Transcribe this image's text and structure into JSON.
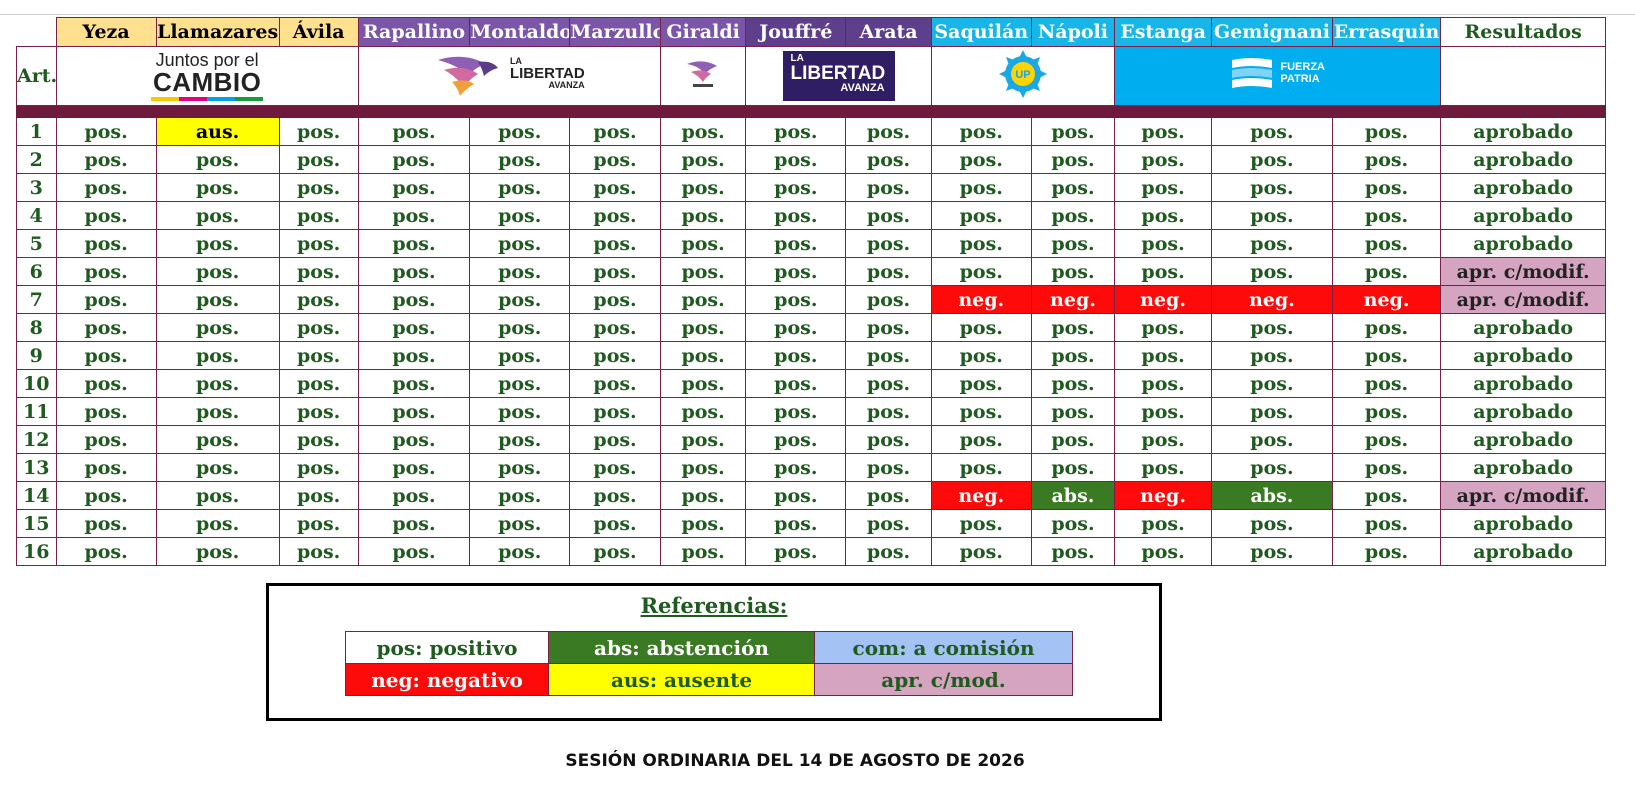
{
  "table": {
    "art_label": "Art.",
    "columns": [
      {
        "name": "Yeza",
        "group": "jxc"
      },
      {
        "name": "Llamazares",
        "group": "jxc"
      },
      {
        "name": "Ávila",
        "group": "jxc"
      },
      {
        "name": "Rapallino",
        "group": "lla"
      },
      {
        "name": "Montaldo",
        "group": "lla"
      },
      {
        "name": "Marzullo",
        "group": "lla"
      },
      {
        "name": "Giraldi",
        "group": "lla"
      },
      {
        "name": "Jouffré",
        "group": "lla2"
      },
      {
        "name": "Arata",
        "group": "lla2"
      },
      {
        "name": "Saquilán",
        "group": "up"
      },
      {
        "name": "Nápoli",
        "group": "up"
      },
      {
        "name": "Estanga",
        "group": "up"
      },
      {
        "name": "Gemignani",
        "group": "up"
      },
      {
        "name": "Errasquin",
        "group": "up"
      }
    ],
    "results_label": "Resultados",
    "rows": [
      {
        "art": "1",
        "votes": [
          "pos.",
          "aus.",
          "pos.",
          "pos.",
          "pos.",
          "pos.",
          "pos.",
          "pos.",
          "pos.",
          "pos.",
          "pos.",
          "pos.",
          "pos.",
          "pos."
        ],
        "result": "aprobado"
      },
      {
        "art": "2",
        "votes": [
          "pos.",
          "pos.",
          "pos.",
          "pos.",
          "pos.",
          "pos.",
          "pos.",
          "pos.",
          "pos.",
          "pos.",
          "pos.",
          "pos.",
          "pos.",
          "pos."
        ],
        "result": "aprobado"
      },
      {
        "art": "3",
        "votes": [
          "pos.",
          "pos.",
          "pos.",
          "pos.",
          "pos.",
          "pos.",
          "pos.",
          "pos.",
          "pos.",
          "pos.",
          "pos.",
          "pos.",
          "pos.",
          "pos."
        ],
        "result": "aprobado"
      },
      {
        "art": "4",
        "votes": [
          "pos.",
          "pos.",
          "pos.",
          "pos.",
          "pos.",
          "pos.",
          "pos.",
          "pos.",
          "pos.",
          "pos.",
          "pos.",
          "pos.",
          "pos.",
          "pos."
        ],
        "result": "aprobado"
      },
      {
        "art": "5",
        "votes": [
          "pos.",
          "pos.",
          "pos.",
          "pos.",
          "pos.",
          "pos.",
          "pos.",
          "pos.",
          "pos.",
          "pos.",
          "pos.",
          "pos.",
          "pos.",
          "pos."
        ],
        "result": "aprobado"
      },
      {
        "art": "6",
        "votes": [
          "pos.",
          "pos.",
          "pos.",
          "pos.",
          "pos.",
          "pos.",
          "pos.",
          "pos.",
          "pos.",
          "pos.",
          "pos.",
          "pos.",
          "pos.",
          "pos."
        ],
        "result": "apr. c/modif."
      },
      {
        "art": "7",
        "votes": [
          "pos.",
          "pos.",
          "pos.",
          "pos.",
          "pos.",
          "pos.",
          "pos.",
          "pos.",
          "pos.",
          "neg.",
          "neg.",
          "neg.",
          "neg.",
          "neg."
        ],
        "result": "apr. c/modif."
      },
      {
        "art": "8",
        "votes": [
          "pos.",
          "pos.",
          "pos.",
          "pos.",
          "pos.",
          "pos.",
          "pos.",
          "pos.",
          "pos.",
          "pos.",
          "pos.",
          "pos.",
          "pos.",
          "pos."
        ],
        "result": "aprobado"
      },
      {
        "art": "9",
        "votes": [
          "pos.",
          "pos.",
          "pos.",
          "pos.",
          "pos.",
          "pos.",
          "pos.",
          "pos.",
          "pos.",
          "pos.",
          "pos.",
          "pos.",
          "pos.",
          "pos."
        ],
        "result": "aprobado"
      },
      {
        "art": "10",
        "votes": [
          "pos.",
          "pos.",
          "pos.",
          "pos.",
          "pos.",
          "pos.",
          "pos.",
          "pos.",
          "pos.",
          "pos.",
          "pos.",
          "pos.",
          "pos.",
          "pos."
        ],
        "result": "aprobado"
      },
      {
        "art": "11",
        "votes": [
          "pos.",
          "pos.",
          "pos.",
          "pos.",
          "pos.",
          "pos.",
          "pos.",
          "pos.",
          "pos.",
          "pos.",
          "pos.",
          "pos.",
          "pos.",
          "pos."
        ],
        "result": "aprobado"
      },
      {
        "art": "12",
        "votes": [
          "pos.",
          "pos.",
          "pos.",
          "pos.",
          "pos.",
          "pos.",
          "pos.",
          "pos.",
          "pos.",
          "pos.",
          "pos.",
          "pos.",
          "pos.",
          "pos."
        ],
        "result": "aprobado"
      },
      {
        "art": "13",
        "votes": [
          "pos.",
          "pos.",
          "pos.",
          "pos.",
          "pos.",
          "pos.",
          "pos.",
          "pos.",
          "pos.",
          "pos.",
          "pos.",
          "pos.",
          "pos.",
          "pos."
        ],
        "result": "aprobado"
      },
      {
        "art": "14",
        "votes": [
          "pos.",
          "pos.",
          "pos.",
          "pos.",
          "pos.",
          "pos.",
          "pos.",
          "pos.",
          "pos.",
          "neg.",
          "abs.",
          "neg.",
          "abs.",
          "pos."
        ],
        "result": "apr. c/modif."
      },
      {
        "art": "15",
        "votes": [
          "pos.",
          "pos.",
          "pos.",
          "pos.",
          "pos.",
          "pos.",
          "pos.",
          "pos.",
          "pos.",
          "pos.",
          "pos.",
          "pos.",
          "pos.",
          "pos."
        ],
        "result": "aprobado"
      },
      {
        "art": "16",
        "votes": [
          "pos.",
          "pos.",
          "pos.",
          "pos.",
          "pos.",
          "pos.",
          "pos.",
          "pos.",
          "pos.",
          "pos.",
          "pos.",
          "pos.",
          "pos.",
          "pos."
        ],
        "result": "aprobado"
      }
    ]
  },
  "logos": {
    "jxc": {
      "line1": "Juntos por el",
      "line2": "CAMBIO",
      "icon": "juntos-por-el-cambio-logo"
    },
    "lla": {
      "small": "LA",
      "big": "LIBERTAD",
      "tail": "AVANZA",
      "icon": "libertad-avanza-eagle-logo"
    },
    "lla_mini": {
      "icon": "libertad-avanza-mini-logo"
    },
    "lla2": {
      "small": "LA",
      "big": "LIBERTAD",
      "tail": "AVANZA"
    },
    "up": {
      "text": "UP",
      "icon": "union-por-la-patria-sun-logo"
    },
    "fp": {
      "line1": "FUERZA",
      "line2": "PATRIA",
      "icon": "flag-stripes-icon"
    }
  },
  "legend": {
    "title": "Referencias:",
    "row1": [
      "pos: positivo",
      "abs: abstención",
      "com: a comisión"
    ],
    "row2": [
      "neg: negativo",
      "aus: ausente",
      "apr. c/mod."
    ]
  },
  "footer": {
    "session": "SESIÓN ORDINARIA DEL 14 DE AGOSTO DE 2026"
  },
  "colors": {
    "text_green": "#1f5a1f",
    "separator": "#6d1a3c",
    "neg": "#ff0a0a",
    "abs": "#3a7a22",
    "aus": "#ffff00",
    "mod": "#d5a4c0",
    "com": "#a4c2f4",
    "jxc": "#ffe08f",
    "lla": "#7a55a8",
    "up": "#18b6e8"
  }
}
